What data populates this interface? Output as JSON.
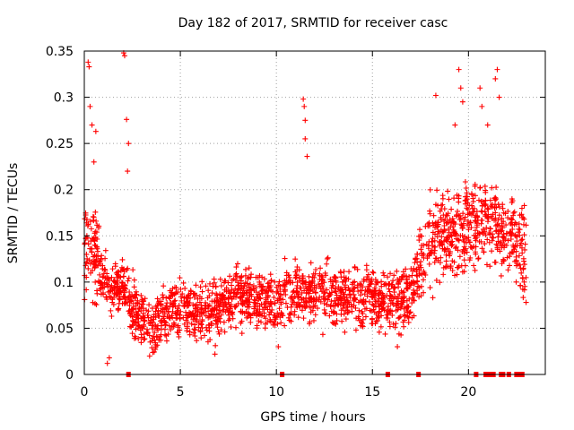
{
  "chart_data": {
    "type": "scatter",
    "title": "Day 182 of 2017, SRMTID for receiver casc",
    "xlabel": "GPS time / hours",
    "ylabel": "SRMTID / TECUs",
    "xlim": [
      0,
      24
    ],
    "ylim": [
      0,
      0.35
    ],
    "grid": true,
    "marker": "+",
    "color": "#ff0000",
    "x_ticks": [
      0,
      5,
      10,
      15,
      20
    ],
    "x_tick_labels": [
      "0",
      "5",
      "10",
      "15",
      "20"
    ],
    "y_ticks": [
      0,
      0.05,
      0.1,
      0.15,
      0.2,
      0.25,
      0.3,
      0.35
    ],
    "y_tick_labels": [
      "0",
      "0.05",
      "0.1",
      "0.15",
      "0.2",
      "0.25",
      "0.3",
      "0.35"
    ],
    "trend": {
      "x": [
        0,
        0.3,
        0.8,
        1.5,
        2.0,
        2.5,
        3.0,
        3.5,
        4.0,
        5.0,
        6.0,
        7.0,
        8.0,
        9.0,
        10.0,
        11.0,
        12.0,
        13.0,
        14.0,
        15.0,
        16.0,
        17.0,
        17.5,
        18.0,
        19.0,
        20.0,
        21.0,
        22.0,
        23.0
      ],
      "y": [
        0.13,
        0.14,
        0.11,
        0.09,
        0.1,
        0.07,
        0.06,
        0.055,
        0.06,
        0.075,
        0.065,
        0.07,
        0.09,
        0.08,
        0.08,
        0.09,
        0.09,
        0.085,
        0.085,
        0.08,
        0.08,
        0.085,
        0.12,
        0.14,
        0.15,
        0.16,
        0.17,
        0.15,
        0.13
      ],
      "spread": 0.03,
      "points_per_hour": 95
    },
    "notable_points": [
      {
        "x": 0.2,
        "y": 0.338
      },
      {
        "x": 0.25,
        "y": 0.333
      },
      {
        "x": 0.3,
        "y": 0.29
      },
      {
        "x": 0.4,
        "y": 0.27
      },
      {
        "x": 0.5,
        "y": 0.23
      },
      {
        "x": 0.6,
        "y": 0.263
      },
      {
        "x": 2.05,
        "y": 0.348
      },
      {
        "x": 2.1,
        "y": 0.345
      },
      {
        "x": 2.2,
        "y": 0.276
      },
      {
        "x": 2.25,
        "y": 0.22
      },
      {
        "x": 2.3,
        "y": 0.25
      },
      {
        "x": 11.4,
        "y": 0.298
      },
      {
        "x": 11.45,
        "y": 0.29
      },
      {
        "x": 11.5,
        "y": 0.275
      },
      {
        "x": 11.5,
        "y": 0.255
      },
      {
        "x": 11.6,
        "y": 0.236
      },
      {
        "x": 19.5,
        "y": 0.33
      },
      {
        "x": 19.7,
        "y": 0.295
      },
      {
        "x": 19.6,
        "y": 0.31
      },
      {
        "x": 20.6,
        "y": 0.31
      },
      {
        "x": 20.7,
        "y": 0.29
      },
      {
        "x": 21.0,
        "y": 0.27
      },
      {
        "x": 21.5,
        "y": 0.33
      },
      {
        "x": 21.6,
        "y": 0.3
      },
      {
        "x": 21.4,
        "y": 0.32
      },
      {
        "x": 18.3,
        "y": 0.302
      },
      {
        "x": 19.3,
        "y": 0.27
      },
      {
        "x": 1.2,
        "y": 0.012
      },
      {
        "x": 1.3,
        "y": 0.018
      },
      {
        "x": 3.4,
        "y": 0.02
      },
      {
        "x": 6.8,
        "y": 0.022
      },
      {
        "x": 10.1,
        "y": 0.03
      },
      {
        "x": 16.3,
        "y": 0.03
      },
      {
        "x": 23.0,
        "y": 0.078
      },
      {
        "x": 22.9,
        "y": 0.1
      }
    ],
    "zero_markers_x": [
      2.3,
      10.3,
      15.8,
      17.4,
      20.4,
      20.9,
      21.0,
      21.2,
      21.3,
      21.7,
      21.8,
      22.1,
      22.5,
      22.6,
      22.8
    ]
  }
}
